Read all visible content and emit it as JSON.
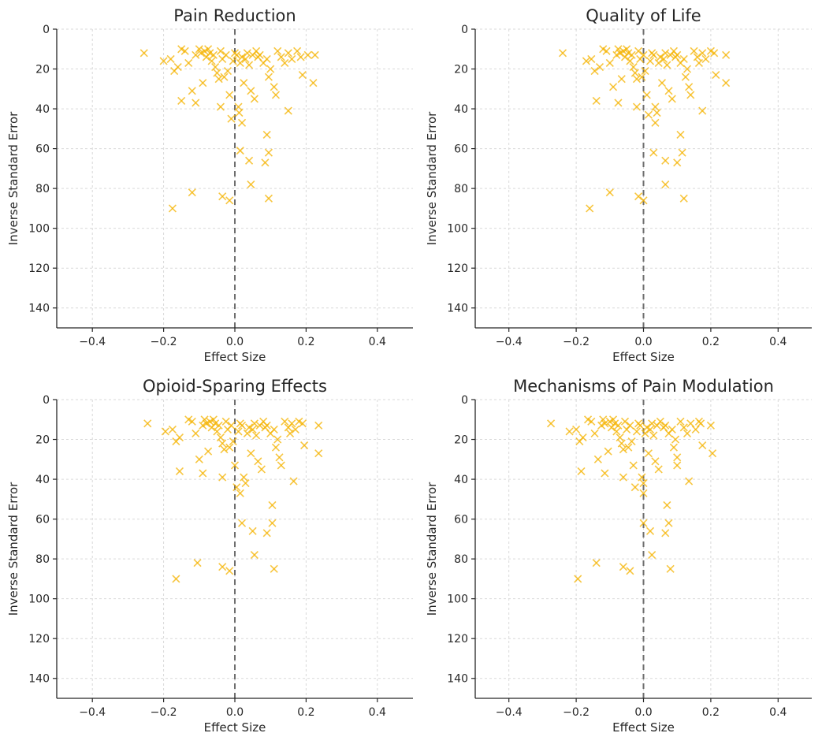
{
  "chart_data": [
    {
      "type": "scatter",
      "title": "Pain Reduction",
      "xlabel": "Effect Size",
      "ylabel": "Inverse Standard Error",
      "xlim": [
        -0.5,
        0.5
      ],
      "ylim": [
        150,
        0
      ],
      "y_inverted": true,
      "x_ticks": [
        "−0.4",
        "−0.2",
        "0.0",
        "0.2",
        "0.4"
      ],
      "y_ticks": [
        "0",
        "20",
        "40",
        "60",
        "80",
        "100",
        "120",
        "140"
      ],
      "grid": true,
      "reference_line_x": 0,
      "marker": "x",
      "color": "#f5b301",
      "points": [
        [
          -0.255,
          12
        ],
        [
          -0.2,
          16
        ],
        [
          -0.18,
          15
        ],
        [
          -0.17,
          21
        ],
        [
          -0.16,
          19
        ],
        [
          -0.15,
          10
        ],
        [
          -0.14,
          11
        ],
        [
          -0.13,
          17
        ],
        [
          -0.12,
          31
        ],
        [
          -0.11,
          13
        ],
        [
          -0.1,
          10
        ],
        [
          -0.095,
          12
        ],
        [
          -0.09,
          27
        ],
        [
          -0.085,
          11
        ],
        [
          -0.08,
          14
        ],
        [
          -0.075,
          10
        ],
        [
          -0.07,
          12
        ],
        [
          -0.065,
          16
        ],
        [
          -0.06,
          13
        ],
        [
          -0.055,
          19
        ],
        [
          -0.05,
          22
        ],
        [
          -0.045,
          25
        ],
        [
          -0.04,
          11
        ],
        [
          -0.035,
          15
        ],
        [
          -0.03,
          24
        ],
        [
          -0.025,
          13
        ],
        [
          -0.02,
          21
        ],
        [
          -0.015,
          33
        ],
        [
          -0.01,
          45
        ],
        [
          -0.005,
          16
        ],
        [
          0.0,
          12
        ],
        [
          0.005,
          13
        ],
        [
          0.01,
          39
        ],
        [
          0.012,
          42
        ],
        [
          0.015,
          17
        ],
        [
          0.02,
          14
        ],
        [
          0.025,
          27
        ],
        [
          0.03,
          15
        ],
        [
          0.035,
          12
        ],
        [
          0.04,
          18
        ],
        [
          0.045,
          31
        ],
        [
          0.05,
          13
        ],
        [
          0.055,
          35
        ],
        [
          0.06,
          11
        ],
        [
          0.065,
          14
        ],
        [
          0.07,
          13
        ],
        [
          0.08,
          17
        ],
        [
          0.09,
          15
        ],
        [
          0.095,
          24
        ],
        [
          0.1,
          20
        ],
        [
          0.11,
          29
        ],
        [
          0.115,
          33
        ],
        [
          0.12,
          11
        ],
        [
          0.13,
          14
        ],
        [
          0.14,
          17
        ],
        [
          0.15,
          12
        ],
        [
          0.16,
          15
        ],
        [
          0.175,
          11
        ],
        [
          0.185,
          14
        ],
        [
          0.19,
          23
        ],
        [
          0.205,
          13
        ],
        [
          0.22,
          27
        ],
        [
          0.225,
          13
        ],
        [
          -0.15,
          36
        ],
        [
          -0.11,
          37
        ],
        [
          -0.04,
          39
        ],
        [
          0.02,
          47
        ],
        [
          0.15,
          41
        ],
        [
          0.09,
          53
        ],
        [
          0.015,
          61
        ],
        [
          0.095,
          62
        ],
        [
          0.04,
          66
        ],
        [
          0.085,
          67
        ],
        [
          0.045,
          78
        ],
        [
          -0.12,
          82
        ],
        [
          -0.035,
          84
        ],
        [
          -0.015,
          86
        ],
        [
          0.095,
          85
        ],
        [
          -0.175,
          90
        ]
      ]
    },
    {
      "type": "scatter",
      "title": "Quality of Life",
      "xlabel": "Effect Size",
      "ylabel": "Inverse Standard Error",
      "xlim": [
        -0.5,
        0.5
      ],
      "ylim": [
        150,
        0
      ],
      "y_inverted": true,
      "x_ticks": [
        "−0.4",
        "−0.2",
        "0.0",
        "0.2",
        "0.4"
      ],
      "y_ticks": [
        "0",
        "20",
        "40",
        "60",
        "80",
        "100",
        "120",
        "140"
      ],
      "grid": true,
      "reference_line_x": 0,
      "marker": "x",
      "color": "#f5b301",
      "points": [
        [
          -0.24,
          12
        ],
        [
          -0.17,
          16
        ],
        [
          -0.155,
          15
        ],
        [
          -0.145,
          21
        ],
        [
          -0.13,
          19
        ],
        [
          -0.12,
          10
        ],
        [
          -0.11,
          11
        ],
        [
          -0.1,
          17
        ],
        [
          -0.09,
          29
        ],
        [
          -0.08,
          13
        ],
        [
          -0.075,
          10
        ],
        [
          -0.07,
          12
        ],
        [
          -0.065,
          25
        ],
        [
          -0.06,
          11
        ],
        [
          -0.055,
          14
        ],
        [
          -0.05,
          10
        ],
        [
          -0.045,
          12
        ],
        [
          -0.04,
          16
        ],
        [
          -0.035,
          13
        ],
        [
          -0.03,
          19
        ],
        [
          -0.025,
          22
        ],
        [
          -0.02,
          25
        ],
        [
          -0.015,
          11
        ],
        [
          -0.01,
          15
        ],
        [
          -0.005,
          24
        ],
        [
          0.0,
          13
        ],
        [
          0.005,
          21
        ],
        [
          0.01,
          33
        ],
        [
          0.015,
          43
        ],
        [
          0.02,
          16
        ],
        [
          0.025,
          12
        ],
        [
          0.03,
          13
        ],
        [
          0.035,
          39
        ],
        [
          0.04,
          42
        ],
        [
          0.045,
          17
        ],
        [
          0.05,
          14
        ],
        [
          0.055,
          27
        ],
        [
          0.06,
          15
        ],
        [
          0.065,
          12
        ],
        [
          0.07,
          18
        ],
        [
          0.075,
          31
        ],
        [
          0.08,
          13
        ],
        [
          0.085,
          35
        ],
        [
          0.09,
          11
        ],
        [
          0.095,
          14
        ],
        [
          0.1,
          13
        ],
        [
          0.11,
          17
        ],
        [
          0.12,
          15
        ],
        [
          0.125,
          24
        ],
        [
          0.13,
          20
        ],
        [
          0.135,
          29
        ],
        [
          0.14,
          33
        ],
        [
          0.15,
          11
        ],
        [
          0.16,
          14
        ],
        [
          0.165,
          17
        ],
        [
          0.175,
          12
        ],
        [
          0.185,
          15
        ],
        [
          0.2,
          11
        ],
        [
          0.21,
          12
        ],
        [
          0.215,
          23
        ],
        [
          0.245,
          13
        ],
        [
          0.245,
          27
        ],
        [
          -0.14,
          36
        ],
        [
          -0.075,
          37
        ],
        [
          -0.02,
          39
        ],
        [
          0.035,
          47
        ],
        [
          0.175,
          41
        ],
        [
          0.11,
          53
        ],
        [
          0.03,
          62
        ],
        [
          0.115,
          62
        ],
        [
          0.065,
          66
        ],
        [
          0.1,
          67
        ],
        [
          0.065,
          78
        ],
        [
          -0.1,
          82
        ],
        [
          -0.015,
          84
        ],
        [
          0.0,
          86
        ],
        [
          0.12,
          85
        ],
        [
          -0.16,
          90
        ]
      ]
    },
    {
      "type": "scatter",
      "title": "Opioid-Sparing Effects",
      "xlabel": "Effect Size",
      "ylabel": "Inverse Standard Error",
      "xlim": [
        -0.5,
        0.5
      ],
      "ylim": [
        150,
        0
      ],
      "y_inverted": true,
      "x_ticks": [
        "−0.4",
        "−0.2",
        "0.0",
        "0.2",
        "0.4"
      ],
      "y_ticks": [
        "0",
        "20",
        "40",
        "60",
        "80",
        "100",
        "120",
        "140"
      ],
      "grid": true,
      "reference_line_x": 0,
      "marker": "x",
      "color": "#f5b301",
      "points": [
        [
          -0.245,
          12
        ],
        [
          -0.195,
          16
        ],
        [
          -0.175,
          15
        ],
        [
          -0.165,
          21
        ],
        [
          -0.155,
          19
        ],
        [
          -0.13,
          10
        ],
        [
          -0.12,
          11
        ],
        [
          -0.11,
          17
        ],
        [
          -0.1,
          30
        ],
        [
          -0.09,
          13
        ],
        [
          -0.085,
          10
        ],
        [
          -0.08,
          12
        ],
        [
          -0.075,
          26
        ],
        [
          -0.07,
          11
        ],
        [
          -0.065,
          14
        ],
        [
          -0.06,
          10
        ],
        [
          -0.055,
          12
        ],
        [
          -0.05,
          16
        ],
        [
          -0.045,
          13
        ],
        [
          -0.04,
          19
        ],
        [
          -0.035,
          22
        ],
        [
          -0.03,
          25
        ],
        [
          -0.025,
          11
        ],
        [
          -0.02,
          15
        ],
        [
          -0.015,
          24
        ],
        [
          -0.01,
          13
        ],
        [
          -0.005,
          21
        ],
        [
          0.0,
          33
        ],
        [
          0.005,
          44
        ],
        [
          0.01,
          16
        ],
        [
          0.015,
          12
        ],
        [
          0.02,
          13
        ],
        [
          0.025,
          39
        ],
        [
          0.03,
          42
        ],
        [
          0.035,
          17
        ],
        [
          0.04,
          14
        ],
        [
          0.045,
          27
        ],
        [
          0.05,
          15
        ],
        [
          0.055,
          12
        ],
        [
          0.06,
          18
        ],
        [
          0.065,
          31
        ],
        [
          0.07,
          13
        ],
        [
          0.075,
          35
        ],
        [
          0.08,
          11
        ],
        [
          0.085,
          14
        ],
        [
          0.09,
          13
        ],
        [
          0.1,
          17
        ],
        [
          0.11,
          15
        ],
        [
          0.115,
          24
        ],
        [
          0.12,
          20
        ],
        [
          0.125,
          29
        ],
        [
          0.13,
          33
        ],
        [
          0.14,
          11
        ],
        [
          0.15,
          14
        ],
        [
          0.155,
          17
        ],
        [
          0.16,
          12
        ],
        [
          0.17,
          15
        ],
        [
          0.18,
          11
        ],
        [
          0.19,
          12
        ],
        [
          0.195,
          23
        ],
        [
          0.235,
          13
        ],
        [
          0.235,
          27
        ],
        [
          -0.155,
          36
        ],
        [
          -0.09,
          37
        ],
        [
          -0.035,
          39
        ],
        [
          0.015,
          47
        ],
        [
          0.165,
          41
        ],
        [
          0.105,
          53
        ],
        [
          0.02,
          62
        ],
        [
          0.105,
          62
        ],
        [
          0.05,
          66
        ],
        [
          0.09,
          67
        ],
        [
          0.055,
          78
        ],
        [
          -0.105,
          82
        ],
        [
          -0.035,
          84
        ],
        [
          -0.015,
          86
        ],
        [
          0.11,
          85
        ],
        [
          -0.165,
          90
        ]
      ]
    },
    {
      "type": "scatter",
      "title": "Mechanisms of Pain Modulation",
      "xlabel": "Effect Size",
      "ylabel": "Inverse Standard Error",
      "xlim": [
        -0.5,
        0.5
      ],
      "ylim": [
        150,
        0
      ],
      "y_inverted": true,
      "x_ticks": [
        "−0.4",
        "−0.2",
        "0.0",
        "0.2",
        "0.4"
      ],
      "y_ticks": [
        "0",
        "20",
        "40",
        "60",
        "80",
        "100",
        "120",
        "140"
      ],
      "grid": true,
      "reference_line_x": 0,
      "marker": "x",
      "color": "#f5b301",
      "points": [
        [
          -0.275,
          12
        ],
        [
          -0.22,
          16
        ],
        [
          -0.2,
          15
        ],
        [
          -0.19,
          21
        ],
        [
          -0.18,
          19
        ],
        [
          -0.165,
          10
        ],
        [
          -0.155,
          11
        ],
        [
          -0.145,
          17
        ],
        [
          -0.135,
          30
        ],
        [
          -0.125,
          13
        ],
        [
          -0.12,
          10
        ],
        [
          -0.115,
          12
        ],
        [
          -0.105,
          26
        ],
        [
          -0.1,
          11
        ],
        [
          -0.095,
          14
        ],
        [
          -0.09,
          10
        ],
        [
          -0.085,
          12
        ],
        [
          -0.08,
          16
        ],
        [
          -0.075,
          13
        ],
        [
          -0.07,
          19
        ],
        [
          -0.065,
          22
        ],
        [
          -0.06,
          25
        ],
        [
          -0.055,
          11
        ],
        [
          -0.05,
          15
        ],
        [
          -0.045,
          24
        ],
        [
          -0.04,
          13
        ],
        [
          -0.035,
          21
        ],
        [
          -0.03,
          33
        ],
        [
          -0.025,
          44
        ],
        [
          -0.02,
          16
        ],
        [
          -0.015,
          12
        ],
        [
          -0.01,
          13
        ],
        [
          -0.005,
          39
        ],
        [
          0.0,
          42
        ],
        [
          0.005,
          17
        ],
        [
          0.01,
          14
        ],
        [
          0.015,
          27
        ],
        [
          0.02,
          15
        ],
        [
          0.025,
          12
        ],
        [
          0.03,
          18
        ],
        [
          0.035,
          31
        ],
        [
          0.04,
          13
        ],
        [
          0.045,
          35
        ],
        [
          0.05,
          11
        ],
        [
          0.06,
          14
        ],
        [
          0.065,
          13
        ],
        [
          0.075,
          17
        ],
        [
          0.085,
          15
        ],
        [
          0.09,
          24
        ],
        [
          0.095,
          20
        ],
        [
          0.1,
          29
        ],
        [
          0.1,
          33
        ],
        [
          0.11,
          11
        ],
        [
          0.12,
          14
        ],
        [
          0.13,
          17
        ],
        [
          0.14,
          12
        ],
        [
          0.155,
          15
        ],
        [
          0.165,
          11
        ],
        [
          0.17,
          12
        ],
        [
          0.175,
          23
        ],
        [
          0.2,
          13
        ],
        [
          0.205,
          27
        ],
        [
          -0.185,
          36
        ],
        [
          -0.115,
          37
        ],
        [
          -0.06,
          39
        ],
        [
          0.0,
          47
        ],
        [
          0.135,
          41
        ],
        [
          0.07,
          53
        ],
        [
          0.0,
          62
        ],
        [
          0.075,
          62
        ],
        [
          0.02,
          66
        ],
        [
          0.065,
          67
        ],
        [
          0.025,
          78
        ],
        [
          -0.14,
          82
        ],
        [
          -0.06,
          84
        ],
        [
          -0.04,
          86
        ],
        [
          0.08,
          85
        ],
        [
          -0.195,
          90
        ]
      ]
    }
  ]
}
